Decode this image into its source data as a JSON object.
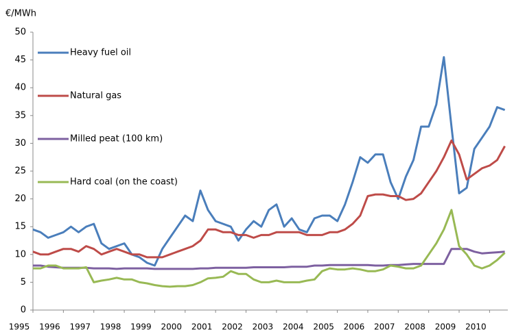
{
  "chart_data": {
    "type": "line",
    "y_label": "€/MWh",
    "x": [
      1995,
      1995.25,
      1995.5,
      1995.75,
      1996,
      1996.25,
      1996.5,
      1996.75,
      1997,
      1997.25,
      1997.5,
      1997.75,
      1998,
      1998.25,
      1998.5,
      1998.75,
      1999,
      1999.25,
      1999.5,
      1999.75,
      2000,
      2000.25,
      2000.5,
      2000.75,
      2001,
      2001.25,
      2001.5,
      2001.75,
      2002,
      2002.25,
      2002.5,
      2002.75,
      2003,
      2003.25,
      2003.5,
      2003.75,
      2004,
      2004.25,
      2004.5,
      2004.75,
      2005,
      2005.25,
      2005.5,
      2005.75,
      2006,
      2006.25,
      2006.5,
      2006.75,
      2007,
      2007.25,
      2007.5,
      2007.75,
      2008,
      2008.25,
      2008.5,
      2008.75,
      2009,
      2009.25,
      2009.5,
      2009.75,
      2010,
      2010.25,
      2010.5
    ],
    "series": [
      {
        "name": "Heavy fuel oil",
        "color": "#4a7ebb",
        "values": [
          14.5,
          14,
          13,
          13.5,
          14,
          15,
          14,
          15,
          15.5,
          12,
          11,
          11.5,
          12,
          10,
          9.5,
          8.5,
          8,
          11,
          13,
          15,
          17,
          16,
          21.5,
          18,
          16,
          15.5,
          15,
          12.5,
          14.5,
          16,
          15,
          18,
          19,
          15,
          16.5,
          14.5,
          14,
          16.5,
          17,
          17,
          16,
          19,
          23,
          27.5,
          26.5,
          28,
          28,
          23,
          20,
          24,
          27,
          33,
          33,
          37,
          45.5,
          33,
          21,
          22,
          29,
          31,
          33,
          36.5,
          36
        ]
      },
      {
        "name": "Natural gas",
        "color": "#be4b48",
        "values": [
          10.5,
          10,
          10,
          10.5,
          11,
          11,
          10.5,
          11.5,
          11,
          10,
          10.5,
          11,
          10.5,
          10,
          10,
          9.5,
          9.5,
          9.5,
          10,
          10.5,
          11,
          11.5,
          12.5,
          14.5,
          14.5,
          14,
          14,
          13.5,
          13.5,
          13,
          13.5,
          13.5,
          14,
          14,
          14,
          14,
          13.5,
          13.5,
          13.5,
          14,
          14,
          14.5,
          15.5,
          17,
          20.5,
          20.8,
          20.8,
          20.5,
          20.5,
          19.8,
          20,
          21,
          23,
          25,
          27.5,
          30.5,
          28,
          23.5,
          24.5,
          25.5,
          26,
          27,
          29.5
        ]
      },
      {
        "name": "Milled peat (100 km)",
        "color": "#7d60a0",
        "values": [
          8,
          8,
          7.8,
          7.7,
          7.6,
          7.6,
          7.6,
          7.6,
          7.5,
          7.5,
          7.5,
          7.4,
          7.5,
          7.5,
          7.5,
          7.5,
          7.4,
          7.4,
          7.4,
          7.4,
          7.4,
          7.4,
          7.5,
          7.5,
          7.6,
          7.6,
          7.6,
          7.6,
          7.6,
          7.7,
          7.7,
          7.7,
          7.7,
          7.7,
          7.8,
          7.8,
          7.8,
          8,
          8,
          8.1,
          8.1,
          8.1,
          8.1,
          8.1,
          8.1,
          8,
          8,
          8.1,
          8.1,
          8.2,
          8.3,
          8.3,
          8.3,
          8.3,
          8.3,
          11,
          11,
          11,
          10.5,
          10.2,
          10.3,
          10.4,
          10.5
        ]
      },
      {
        "name": "Hard coal (on the coast)",
        "color": "#98b954",
        "values": [
          7.5,
          7.5,
          8,
          8,
          7.5,
          7.5,
          7.5,
          7.7,
          5,
          5.3,
          5.5,
          5.8,
          5.5,
          5.5,
          5,
          4.8,
          4.5,
          4.3,
          4.2,
          4.3,
          4.3,
          4.5,
          5,
          5.7,
          5.8,
          6,
          7,
          6.5,
          6.5,
          5.5,
          5,
          5,
          5.3,
          5,
          5,
          5,
          5.3,
          5.5,
          7,
          7.5,
          7.3,
          7.3,
          7.5,
          7.3,
          7,
          7,
          7.3,
          8,
          7.8,
          7.5,
          7.5,
          8,
          10,
          12,
          14.5,
          18,
          11.5,
          10,
          8,
          7.5,
          8,
          9,
          10.3
        ]
      }
    ],
    "xlim": [
      1995,
      2010.6
    ],
    "xticks": [
      1995,
      1996,
      1997,
      1998,
      1999,
      2000,
      2001,
      2002,
      2003,
      2004,
      2005,
      2006,
      2007,
      2008,
      2009,
      2010
    ],
    "ylim": [
      0,
      50
    ],
    "yticks": [
      0,
      5,
      10,
      15,
      20,
      25,
      30,
      35,
      40,
      45,
      50
    ],
    "grid": false,
    "legend": "upper left"
  }
}
